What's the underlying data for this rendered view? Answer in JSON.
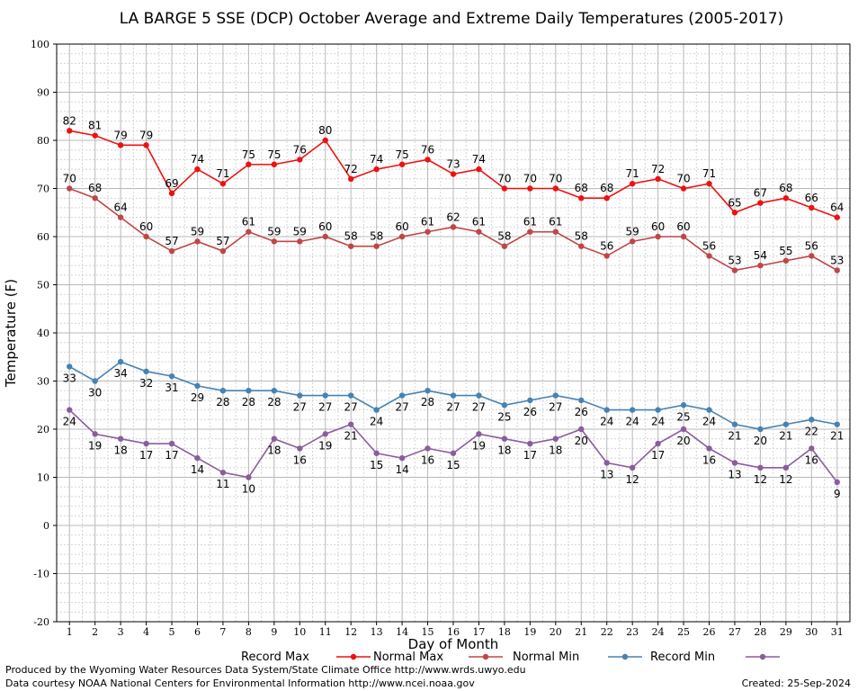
{
  "chart_data": {
    "type": "line",
    "title": "LA BARGE 5 SSE (DCP) October Average and Extreme Daily Temperatures (2005-2017)",
    "xlabel": "Day of Month",
    "ylabel": "Temperature (F)",
    "ylim": [
      -20,
      100
    ],
    "yticks": [
      -20,
      -10,
      0,
      10,
      20,
      30,
      40,
      50,
      60,
      70,
      80,
      90,
      100
    ],
    "x": [
      1,
      2,
      3,
      4,
      5,
      6,
      7,
      8,
      9,
      10,
      11,
      12,
      13,
      14,
      15,
      16,
      17,
      18,
      19,
      20,
      21,
      22,
      23,
      24,
      25,
      26,
      27,
      28,
      29,
      30,
      31
    ],
    "grid": true,
    "legend_position": "bottom",
    "series": [
      {
        "name": "Record Max",
        "color": "#ee1111",
        "label_pos": "above",
        "values": [
          82,
          81,
          79,
          79,
          69,
          74,
          71,
          75,
          75,
          76,
          80,
          72,
          74,
          75,
          76,
          73,
          74,
          70,
          70,
          70,
          68,
          68,
          71,
          72,
          70,
          71,
          65,
          67,
          68,
          66,
          64
        ]
      },
      {
        "name": "Normal Max",
        "color": "#c04646",
        "label_pos": "above",
        "values": [
          70,
          68,
          64,
          60,
          57,
          59,
          57,
          61,
          59,
          59,
          60,
          58,
          58,
          60,
          61,
          62,
          61,
          58,
          61,
          61,
          58,
          56,
          59,
          60,
          60,
          56,
          53,
          54,
          55,
          56,
          53
        ]
      },
      {
        "name": "Normal Min",
        "color": "#4682b4",
        "label_pos": "below",
        "values": [
          33,
          30,
          34,
          32,
          31,
          29,
          28,
          28,
          28,
          27,
          27,
          27,
          24,
          27,
          28,
          27,
          27,
          25,
          26,
          27,
          26,
          24,
          24,
          24,
          25,
          24,
          21,
          20,
          21,
          22,
          21
        ]
      },
      {
        "name": "Record Min",
        "color": "#8a5d9c",
        "label_pos": "below",
        "values": [
          24,
          19,
          18,
          17,
          17,
          14,
          11,
          10,
          18,
          16,
          19,
          21,
          15,
          14,
          16,
          15,
          19,
          18,
          17,
          18,
          20,
          13,
          12,
          17,
          20,
          16,
          13,
          12,
          12,
          16,
          9
        ]
      }
    ]
  },
  "footer": {
    "produced_by": "Produced by the Wyoming Water Resources Data System/State Climate Office http://www.wrds.uwyo.edu",
    "courtesy": "Data courtesy NOAA National Centers for Environmental Information http://www.ncei.noaa.gov",
    "created": "Created:  25-Sep-2024"
  }
}
